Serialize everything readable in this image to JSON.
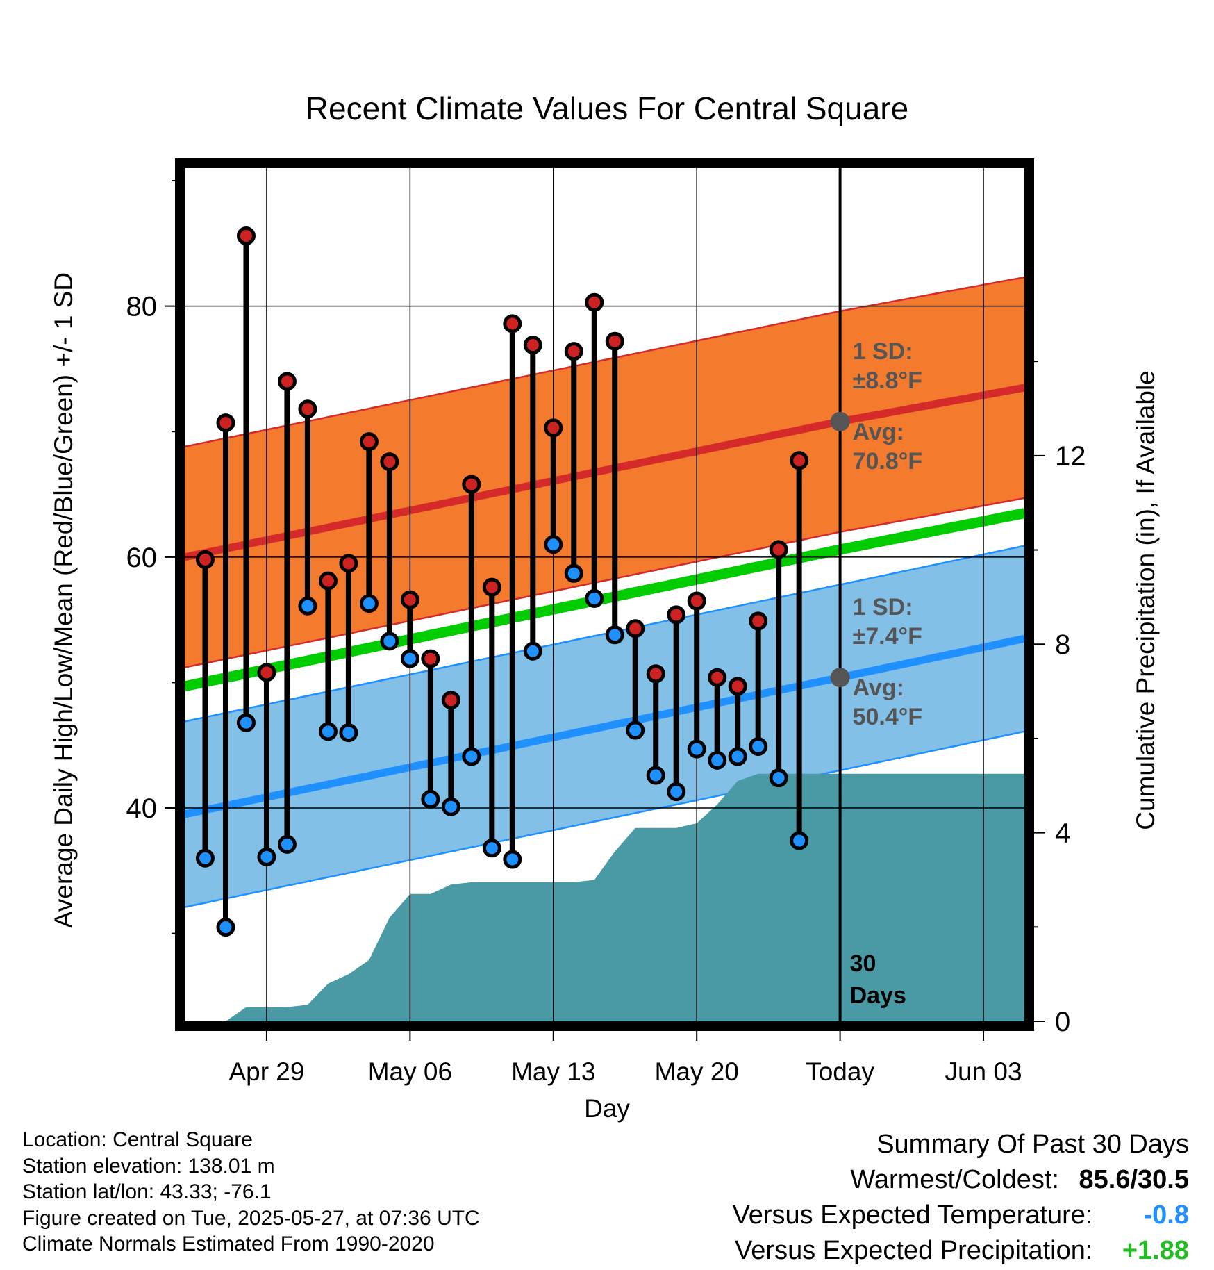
{
  "chart_data": {
    "type": "line",
    "title": "Recent Climate Values For Central Square",
    "xlabel": "Day",
    "ylabel": "Average Daily High/Low/Mean (Red/Blue/Green) +/- 1 SD",
    "y2label": "Cumulative Precipitation (in), If Available",
    "ylim": [
      23,
      91
    ],
    "y2lim": [
      0,
      18.1
    ],
    "yticks": [
      40,
      60,
      80
    ],
    "y2ticks": [
      0,
      4,
      8,
      12
    ],
    "xlim": [
      "2025-04-25",
      "2025-06-05"
    ],
    "xticks": [
      "Apr 29",
      "May 06",
      "May 13",
      "May 20",
      "Today",
      "Jun 03"
    ],
    "xtick_dates": [
      "2025-04-29",
      "2025-05-06",
      "2025-05-13",
      "2025-05-20",
      "2025-05-27",
      "2025-06-03"
    ],
    "today": "2025-05-27",
    "today_label": "30 Days",
    "grid": true,
    "colors": {
      "high_band": "#f47a2e",
      "high_line": "#d42a2a",
      "low_band": "#83c0e8",
      "low_line": "#1e90ff",
      "mean_line": "#00cc00",
      "precip": "#4a9aa5",
      "high_point": "#cc2222",
      "low_point": "#1e90ff",
      "annotation": "#555555"
    },
    "normals": {
      "dates": [
        "2025-04-25",
        "2025-05-27",
        "2025-06-05"
      ],
      "high": [
        60.0,
        70.8,
        73.5
      ],
      "low": [
        39.5,
        50.4,
        53.5
      ],
      "mean": [
        49.7,
        60.6,
        63.5
      ],
      "high_sd": 8.8,
      "low_sd": 7.4
    },
    "series": [
      {
        "name": "High",
        "dates": [
          "2025-04-26",
          "2025-04-27",
          "2025-04-28",
          "2025-04-29",
          "2025-04-30",
          "2025-05-01",
          "2025-05-02",
          "2025-05-03",
          "2025-05-04",
          "2025-05-05",
          "2025-05-06",
          "2025-05-07",
          "2025-05-08",
          "2025-05-09",
          "2025-05-10",
          "2025-05-11",
          "2025-05-12",
          "2025-05-13",
          "2025-05-14",
          "2025-05-15",
          "2025-05-16",
          "2025-05-17",
          "2025-05-18",
          "2025-05-19",
          "2025-05-20",
          "2025-05-21",
          "2025-05-22",
          "2025-05-23",
          "2025-05-24",
          "2025-05-25",
          "2025-05-26"
        ],
        "values": [
          59.8,
          70.7,
          85.6,
          50.8,
          74.0,
          71.8,
          58.1,
          59.5,
          69.2,
          67.6,
          56.6,
          51.9,
          48.6,
          65.8,
          57.6,
          78.6,
          76.9,
          70.3,
          76.4,
          80.3,
          77.2,
          54.3,
          50.7,
          55.4,
          56.5,
          50.4,
          49.7,
          54.9,
          60.6,
          67.7,
          null
        ]
      },
      {
        "name": "Low",
        "dates": [
          "2025-04-26",
          "2025-04-27",
          "2025-04-28",
          "2025-04-29",
          "2025-04-30",
          "2025-05-01",
          "2025-05-02",
          "2025-05-03",
          "2025-05-04",
          "2025-05-05",
          "2025-05-06",
          "2025-05-07",
          "2025-05-08",
          "2025-05-09",
          "2025-05-10",
          "2025-05-11",
          "2025-05-12",
          "2025-05-13",
          "2025-05-14",
          "2025-05-15",
          "2025-05-16",
          "2025-05-17",
          "2025-05-18",
          "2025-05-19",
          "2025-05-20",
          "2025-05-21",
          "2025-05-22",
          "2025-05-23",
          "2025-05-24",
          "2025-05-25",
          "2025-05-26"
        ],
        "values": [
          36.0,
          30.5,
          46.8,
          36.1,
          37.1,
          56.1,
          46.1,
          46.0,
          56.3,
          53.3,
          51.9,
          40.7,
          40.1,
          44.1,
          36.8,
          35.9,
          52.5,
          61.0,
          58.7,
          56.7,
          53.8,
          46.2,
          42.6,
          41.3,
          44.7,
          43.8,
          44.1,
          44.9,
          42.4,
          37.4,
          null
        ]
      },
      {
        "name": "Cumulative Precipitation",
        "axis": "y2",
        "dates": [
          "2025-04-25",
          "2025-04-27",
          "2025-04-28",
          "2025-04-29",
          "2025-04-30",
          "2025-05-01",
          "2025-05-02",
          "2025-05-03",
          "2025-05-04",
          "2025-05-05",
          "2025-05-06",
          "2025-05-07",
          "2025-05-08",
          "2025-05-09",
          "2025-05-10",
          "2025-05-11",
          "2025-05-12",
          "2025-05-13",
          "2025-05-14",
          "2025-05-15",
          "2025-05-16",
          "2025-05-17",
          "2025-05-18",
          "2025-05-19",
          "2025-05-20",
          "2025-05-21",
          "2025-05-22",
          "2025-05-23",
          "2025-05-24",
          "2025-05-25",
          "2025-05-26",
          "2025-06-05"
        ],
        "values": [
          0,
          0,
          0.3,
          0.3,
          0.3,
          0.35,
          0.8,
          1.0,
          1.3,
          2.2,
          2.7,
          2.7,
          2.9,
          2.95,
          2.95,
          2.95,
          2.95,
          2.95,
          2.95,
          3.0,
          3.6,
          4.1,
          4.1,
          4.1,
          4.2,
          4.6,
          5.1,
          5.25,
          5.25,
          5.25,
          5.25,
          5.25
        ]
      }
    ],
    "annotations": {
      "high_sd": "1 SD:",
      "high_sd_val": "±8.8°F",
      "high_avg": "Avg:",
      "high_avg_val": "70.8°F",
      "low_sd": "1 SD:",
      "low_sd_val": "±7.4°F",
      "low_avg": "Avg:",
      "low_avg_val": "50.4°F",
      "days_line1": "30",
      "days_line2": "Days"
    }
  },
  "footer": {
    "location": "Location: Central Square",
    "elevation": "Station elevation: 138.01 m",
    "latlon": "Station lat/lon: 43.33; -76.1",
    "created": "Figure created on Tue, 2025-05-27, at 07:36 UTC",
    "normals": "Climate Normals Estimated From 1990-2020"
  },
  "summary": {
    "heading": "Summary Of Past 30 Days",
    "warmest_label": "Warmest/Coldest:",
    "warmest_value": "85.6/30.5",
    "temp_label": "Versus Expected Temperature:",
    "temp_value": "-0.8",
    "temp_color": "#1e90ff",
    "precip_label": "Versus Expected Precipitation:",
    "precip_value": "+1.88",
    "precip_color": "#22bb22"
  }
}
